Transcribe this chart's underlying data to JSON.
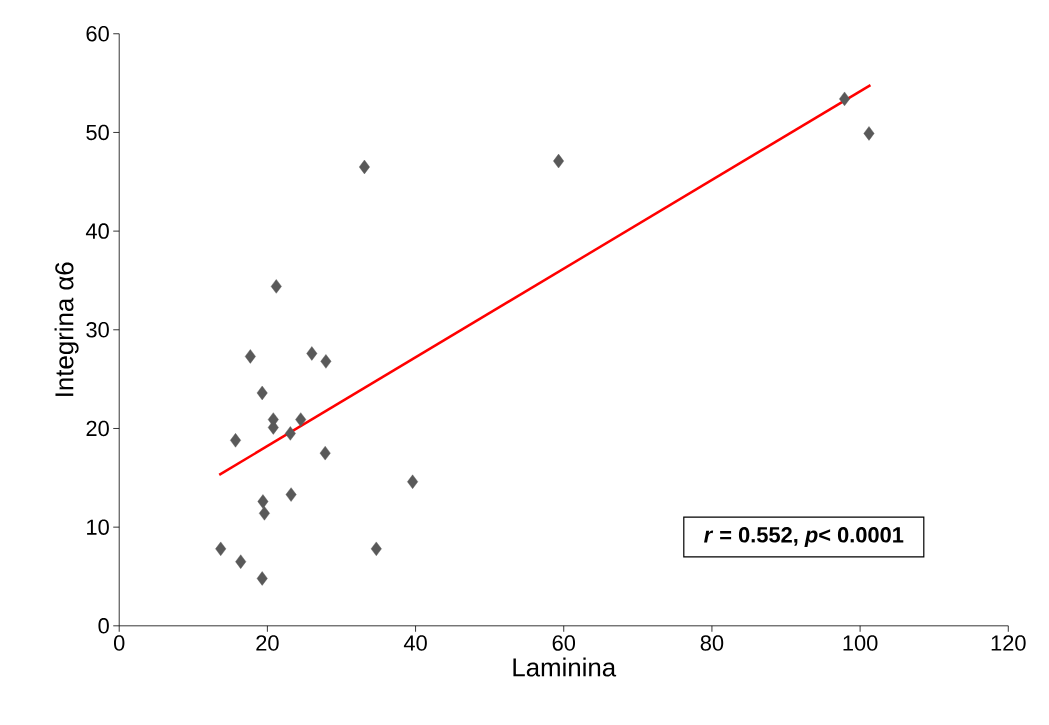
{
  "chart_data": {
    "type": "scatter",
    "xlabel": "Laminina",
    "ylabel": "Integrina α6",
    "xlim": [
      0,
      120
    ],
    "xticks": [
      0,
      20,
      40,
      60,
      80,
      100,
      120
    ],
    "ylim": [
      0,
      60
    ],
    "yticks": [
      0,
      10,
      20,
      30,
      40,
      50,
      60
    ],
    "marker": "diamond",
    "grid": false,
    "annotations": [
      "*r* = 0.552, *p*< 0.0001"
    ],
    "series": [
      {
        "color": "#595959",
        "x": [
          13.7,
          16.4,
          19.3,
          15.7,
          17.7,
          19.3,
          21.2,
          20.8,
          20.8,
          23.1,
          24.5,
          26.0,
          27.9,
          27.8,
          23.2,
          19.4,
          19.6,
          33.1,
          34.7,
          39.6,
          59.3,
          97.9,
          101.2
        ],
        "values": [
          7.8,
          6.5,
          4.8,
          18.8,
          27.3,
          23.6,
          34.4,
          20.9,
          20.1,
          19.5,
          20.9,
          27.6,
          26.8,
          17.5,
          13.3,
          12.6,
          11.4,
          46.5,
          7.8,
          14.6,
          47.1,
          53.4,
          49.9
        ]
      },
      {
        "type": "line",
        "marker": "none",
        "color": "#ff0000",
        "x": [
          13.5,
          101.4
        ],
        "values": [
          15.3,
          54.8
        ]
      }
    ]
  }
}
